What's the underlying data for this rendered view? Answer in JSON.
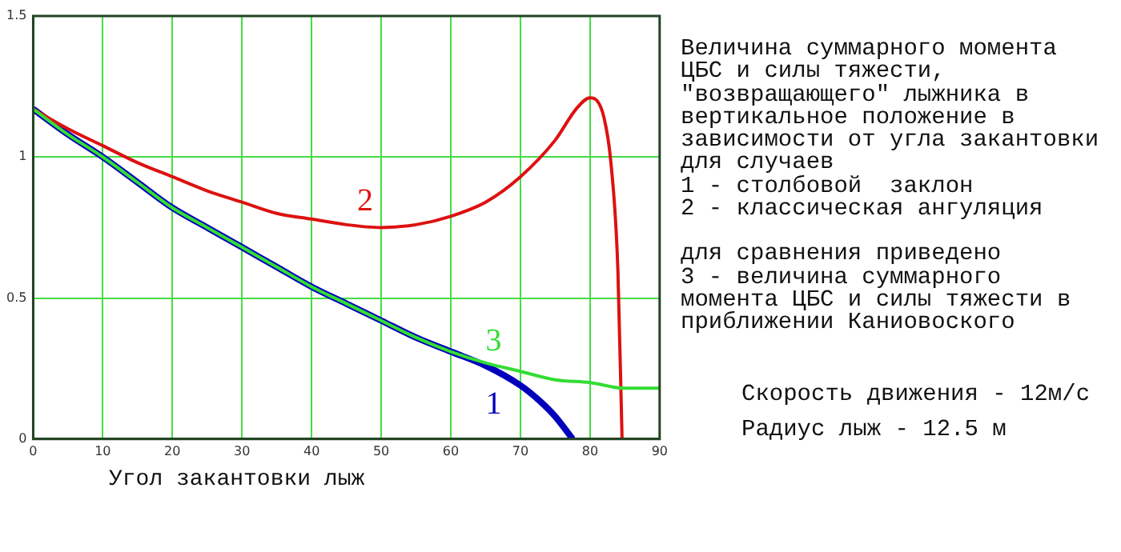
{
  "chart_data": {
    "type": "line",
    "xlabel": "Угол закантовки лыж",
    "xlim": [
      0,
      90
    ],
    "xticks": [
      0,
      10,
      20,
      30,
      40,
      50,
      60,
      70,
      80,
      90
    ],
    "ylim": [
      0,
      1.5
    ],
    "yticks": [
      0,
      0.5,
      1,
      1.5
    ],
    "grid": true,
    "legend": false,
    "marker": "none",
    "line_style": "solid",
    "series": [
      {
        "name": "1",
        "color": "#0000bb",
        "x": [
          0,
          5,
          10,
          15,
          20,
          25,
          30,
          35,
          40,
          45,
          50,
          55,
          60,
          65,
          70,
          73,
          75,
          77.5
        ],
        "values": [
          1.17,
          1.08,
          1.0,
          0.91,
          0.82,
          0.75,
          0.68,
          0.61,
          0.54,
          0.48,
          0.42,
          0.36,
          0.31,
          0.26,
          0.19,
          0.13,
          0.08,
          0
        ]
      },
      {
        "name": "2",
        "color": "#dd1111",
        "x": [
          0,
          5,
          10,
          15,
          20,
          25,
          30,
          35,
          40,
          45,
          50,
          55,
          60,
          65,
          70,
          75,
          78,
          80,
          81,
          82,
          83,
          84,
          84.6
        ],
        "values": [
          1.17,
          1.1,
          1.04,
          0.98,
          0.93,
          0.88,
          0.84,
          0.8,
          0.78,
          0.76,
          0.75,
          0.76,
          0.79,
          0.84,
          0.93,
          1.06,
          1.17,
          1.21,
          1.2,
          1.14,
          0.98,
          0.6,
          0
        ]
      },
      {
        "name": "3",
        "color": "#33dd33",
        "x": [
          0,
          5,
          10,
          15,
          20,
          25,
          30,
          35,
          40,
          45,
          50,
          55,
          60,
          65,
          70,
          75,
          80,
          85,
          90
        ],
        "values": [
          1.17,
          1.08,
          1.0,
          0.91,
          0.82,
          0.75,
          0.68,
          0.61,
          0.54,
          0.48,
          0.42,
          0.36,
          0.31,
          0.27,
          0.24,
          0.21,
          0.2,
          0.18,
          0.18
        ]
      }
    ],
    "annotations": [
      "Величина суммарного момента",
      "ЦБС и силы тяжести,",
      "\"возвращающего\" лыжника в",
      "вертикальное положение в",
      "зависимости от угла закантовки",
      "для случаев",
      "1 - столбовой  заклон",
      "2 - классическая ангуляция",
      "для сравнения приведено",
      "3 - величина суммарного",
      "момента ЦБС и силы тяжести в",
      "приближении Каниовоского",
      "Скорость движения - 12м/с",
      "Радиус лыж - 12.5 м"
    ]
  }
}
